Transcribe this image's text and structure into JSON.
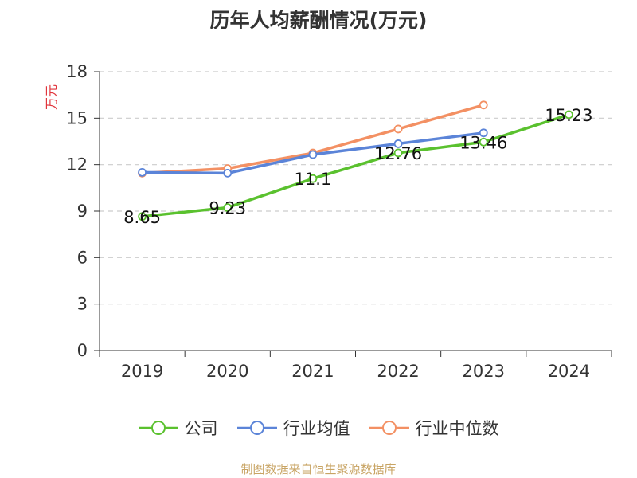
{
  "chart_data": {
    "type": "line",
    "title": "历年人均薪酬情况(万元)",
    "ylabel": "万元",
    "xlabel": "",
    "categories": [
      "2019",
      "2020",
      "2021",
      "2022",
      "2023",
      "2024"
    ],
    "ylim": [
      0,
      18
    ],
    "yticks": [
      0,
      3,
      6,
      9,
      12,
      15,
      18
    ],
    "grid": "horizontal dashed",
    "legend_position": "bottom",
    "series": [
      {
        "name": "公司",
        "color": "#5ac12e",
        "values": [
          8.65,
          9.23,
          11.1,
          12.76,
          13.46,
          15.23
        ],
        "show_labels": true
      },
      {
        "name": "行业均值",
        "color": "#5b84d8",
        "values": [
          11.5,
          11.45,
          12.65,
          13.35,
          14.05,
          null
        ],
        "show_labels": false
      },
      {
        "name": "行业中位数",
        "color": "#f39063",
        "values": [
          11.45,
          11.75,
          12.75,
          14.3,
          15.85,
          null
        ],
        "show_labels": false
      }
    ],
    "ylabel_color": "#e0353c",
    "source": "制图数据来自恒生聚源数据库",
    "source_color": "#c8a464"
  }
}
